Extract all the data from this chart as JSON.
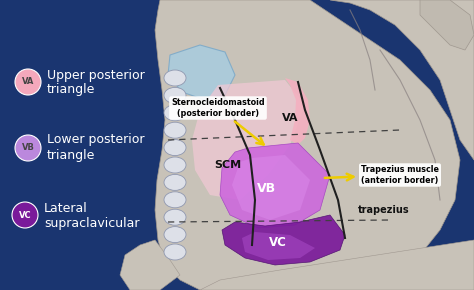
{
  "bg_color": "#1a3570",
  "neck_color": "#c8c2b8",
  "neck_shadow": "#b0aaa0",
  "spine_color": "#dde0e8",
  "spine_edge": "#9098b0",
  "blue_region_color": "#a8cce0",
  "SCM_color": "#f0c8d4",
  "VA_strip_color": "#f4b0c0",
  "VB_color": "#cc66dd",
  "VC_color": "#7a1a9a",
  "legend": [
    {
      "label": "VA",
      "text1": "Upper posterior",
      "text2": "triangle",
      "circle": "#f4a8bc",
      "label_color": "#444444"
    },
    {
      "label": "VB",
      "text1": "Lower posterior",
      "text2": "triangle",
      "circle": "#bb88dd",
      "label_color": "#444444"
    },
    {
      "label": "VC",
      "text1": "Lateral",
      "text2": "supraclavicular",
      "circle": "#7a1a9a",
      "label_color": "#ffffff"
    }
  ],
  "arrow_color": "#eecc00",
  "line_color": "#202020",
  "dash_color": "#404040",
  "white_box_color": "#ffffff",
  "label_va_text": "VA",
  "label_scm_text": "SCM",
  "label_vb_text": "VB",
  "label_vc_text": "VC",
  "label_trap_text": "trapezius",
  "ann1_text": "Sternocleidomastoid\n(posterior border)",
  "ann2_text": "Trapezius muscle\n(anterior border)"
}
